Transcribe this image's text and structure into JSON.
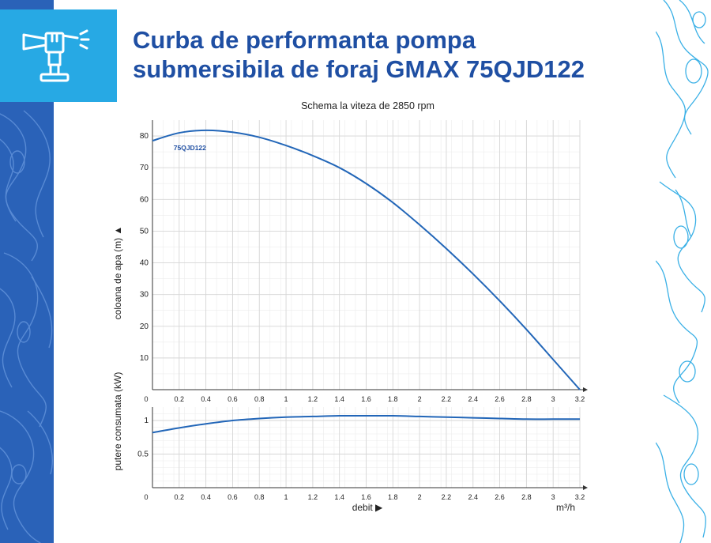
{
  "header": {
    "title_line1": "Curba de performanta pompa",
    "title_line2": "submersibila de foraj GMAX 75QJD122",
    "logo_icon": "submersible-pump-icon"
  },
  "colors": {
    "brand_blue": "#1f4fa3",
    "logo_background": "#27a9e4",
    "side_band": "#2a62b8",
    "curve": "#2266b8",
    "grid": "#d6d6d6"
  },
  "chart_data": [
    {
      "type": "line",
      "title": "Schema la viteza de 2850 rpm",
      "ylabel": "coloana de apa (m) ▲",
      "xlabel": "",
      "xlim": [
        0,
        3.2
      ],
      "ylim": [
        0,
        85
      ],
      "grid": true,
      "x_ticks": [
        0,
        0.2,
        0.4,
        0.6,
        0.8,
        1,
        1.2,
        1.4,
        1.6,
        1.8,
        2,
        2.2,
        2.4,
        2.6,
        2.8,
        3,
        3.2
      ],
      "x_tick_labels": [
        "0",
        "0.2",
        "0.4",
        "0.6",
        "0.8",
        "1",
        "1.2",
        "1.4",
        "1.6",
        "1.8",
        "2",
        "2.2",
        "2.4",
        "2.6",
        "2.8",
        "3",
        "3.2"
      ],
      "y_ticks": [
        10,
        20,
        30,
        40,
        50,
        60,
        70,
        80
      ],
      "y_tick_labels": [
        "10",
        "20",
        "30",
        "40",
        "50",
        "60",
        "70",
        "80"
      ],
      "series": [
        {
          "name": "75QJD122",
          "x": [
            0,
            0.2,
            0.4,
            0.6,
            0.8,
            1.0,
            1.2,
            1.4,
            1.6,
            1.8,
            2.0,
            2.2,
            2.4,
            2.6,
            2.8,
            3.0,
            3.2
          ],
          "y": [
            78.5,
            81.0,
            81.8,
            81.2,
            79.6,
            77.0,
            73.8,
            70.0,
            65.0,
            59.0,
            52.0,
            44.5,
            36.5,
            28.0,
            19.0,
            9.5,
            0
          ]
        }
      ]
    },
    {
      "type": "line",
      "title": "",
      "ylabel": "putere consumata (kW)",
      "xlabel": "debit ▶",
      "x_unit": "m³/h",
      "xlim": [
        0,
        3.2
      ],
      "ylim": [
        0,
        1.2
      ],
      "grid": true,
      "x_ticks": [
        0,
        0.2,
        0.4,
        0.6,
        0.8,
        1,
        1.2,
        1.4,
        1.6,
        1.8,
        2,
        2.2,
        2.4,
        2.6,
        2.8,
        3,
        3.2
      ],
      "x_tick_labels": [
        "0",
        "0.2",
        "0.4",
        "0.6",
        "0.8",
        "1",
        "1.2",
        "1.4",
        "1.6",
        "1.8",
        "2",
        "2.2",
        "2.4",
        "2.6",
        "2.8",
        "3",
        "3.2"
      ],
      "y_ticks": [
        0.5,
        1
      ],
      "y_tick_labels": [
        "0.5",
        "1"
      ],
      "series": [
        {
          "x": [
            0,
            0.2,
            0.4,
            0.6,
            0.8,
            1.0,
            1.2,
            1.4,
            1.6,
            1.8,
            2.0,
            2.2,
            2.4,
            2.6,
            2.8,
            3.0,
            3.2
          ],
          "y": [
            0.82,
            0.89,
            0.95,
            1.0,
            1.03,
            1.05,
            1.06,
            1.07,
            1.07,
            1.07,
            1.06,
            1.05,
            1.04,
            1.03,
            1.02,
            1.02,
            1.02
          ]
        }
      ]
    }
  ]
}
